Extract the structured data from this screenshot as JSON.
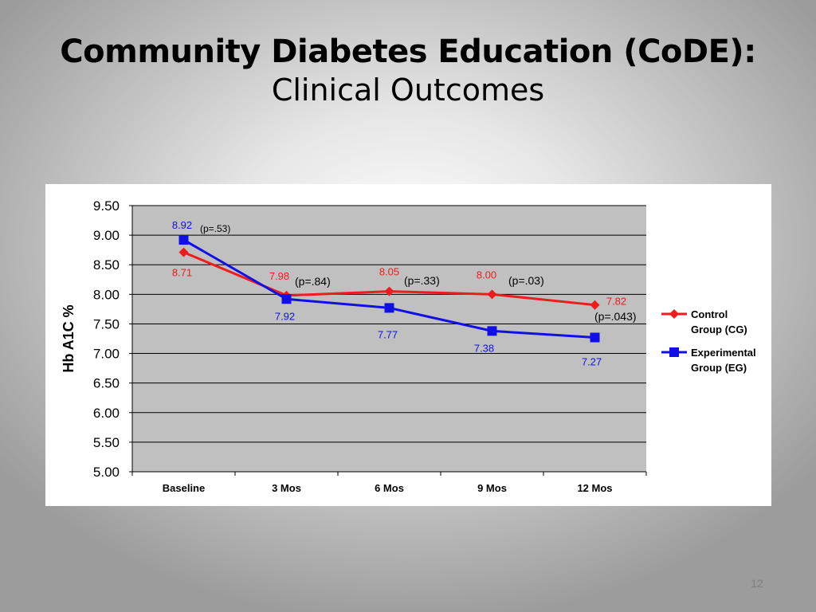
{
  "slide": {
    "title": "Community Diabetes Education (CoDE):",
    "subtitle": "Clinical Outcomes",
    "slide_number": "12"
  },
  "chart_data": {
    "type": "line",
    "ylabel": "Hb A1C %",
    "xlabel": "",
    "ylim": [
      5.0,
      9.5
    ],
    "yticks": [
      "9.50",
      "9.00",
      "8.50",
      "8.00",
      "7.50",
      "7.00",
      "6.50",
      "6.00",
      "5.50",
      "5.00"
    ],
    "categories": [
      "Baseline",
      "3 Mos",
      "6 Mos",
      "9 Mos",
      "12 Mos"
    ],
    "grid": true,
    "legend_position": "right",
    "series": [
      {
        "name": "Control Group (CG)",
        "legend_lines": [
          "Control",
          "Group (CG)"
        ],
        "color": "#ee1c1c",
        "marker": "diamond",
        "values": [
          8.71,
          7.98,
          8.05,
          8.0,
          7.82
        ],
        "labels": [
          "8.71",
          "7.98",
          "8.05",
          "8.00",
          "7.82"
        ]
      },
      {
        "name": "Experimental Group (EG)",
        "legend_lines": [
          "Experimental",
          "Group (EG)"
        ],
        "color": "#1010e6",
        "marker": "square",
        "values": [
          8.92,
          7.92,
          7.77,
          7.38,
          7.27
        ],
        "labels": [
          "8.92",
          "7.92",
          "7.77",
          "7.38",
          "7.27"
        ]
      }
    ],
    "annotations": [
      "(p=.53)",
      "(p=.84)",
      "(p=.33)",
      "(p=.03)",
      "(p=.043)"
    ]
  }
}
